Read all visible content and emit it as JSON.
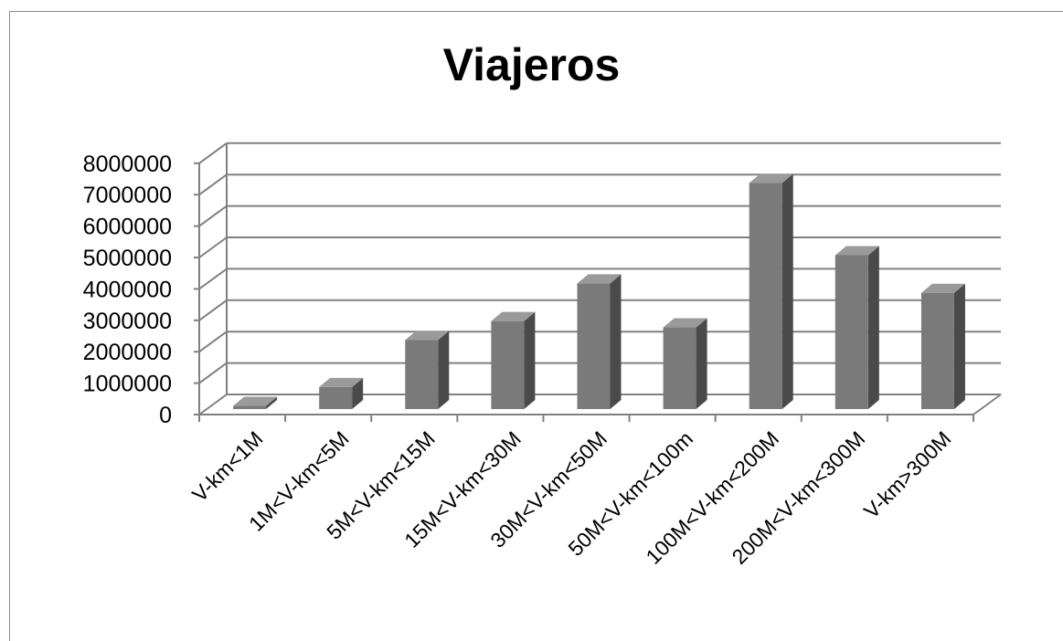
{
  "chart_data": {
    "type": "bar",
    "title": "Viajeros",
    "xlabel": "",
    "ylabel": "",
    "ylim": [
      0,
      8000000
    ],
    "yticks": [
      "0",
      "1000000",
      "2000000",
      "3000000",
      "4000000",
      "5000000",
      "6000000",
      "7000000",
      "8000000"
    ],
    "categories": [
      "V-km<1M",
      "1M<V-km<5M",
      "5M<V-km<15M",
      "15M<V-km<30M",
      "30M<V-km<50M",
      "50M<V-km<100m",
      "100M<V-km<200M",
      "200M<V-km<300M",
      "V-km>300M"
    ],
    "values": [
      100000,
      700000,
      2200000,
      2800000,
      4000000,
      2600000,
      7200000,
      4900000,
      3700000
    ],
    "grid": true,
    "style": "3d-column",
    "colors": {
      "bar_front": "#7a7a7a",
      "bar_side": "#4a4a4a",
      "bar_top": "#9a9a9a",
      "gridline": "#808080"
    }
  }
}
